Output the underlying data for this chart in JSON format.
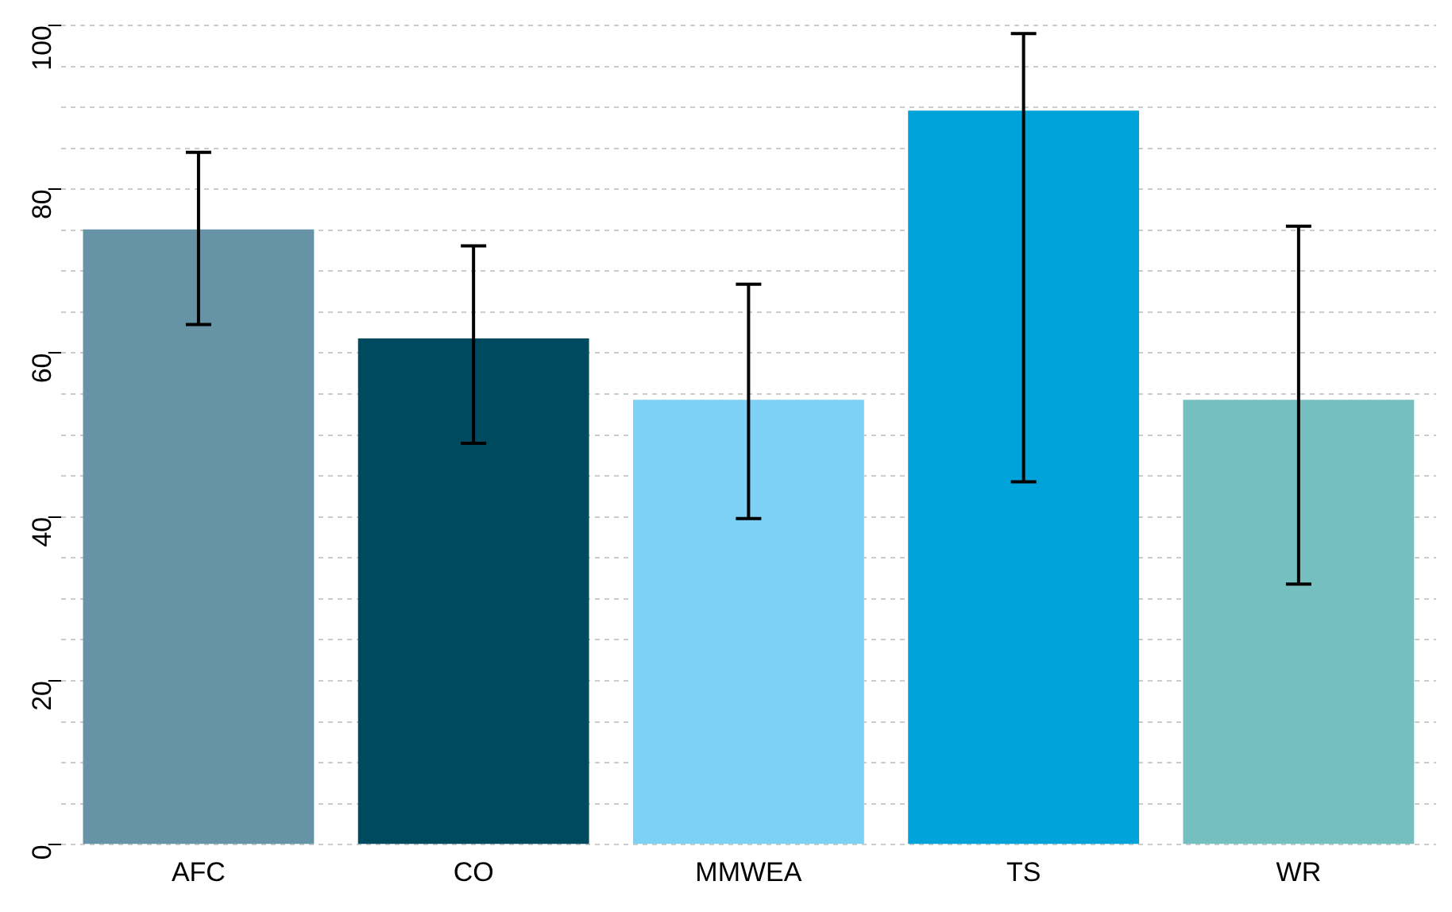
{
  "chart_data": {
    "type": "bar",
    "categories": [
      "AFC",
      "CO",
      "MMWEA",
      "TS",
      "WR"
    ],
    "values": [
      75.1,
      61.8,
      54.3,
      89.6,
      54.3
    ],
    "colors": [
      "#6694a6",
      "#004a5f",
      "#7dd1f5",
      "#00a3d9",
      "#75bfc1"
    ],
    "errors": [
      [
        63.5,
        84.5
      ],
      [
        49,
        73.1
      ],
      [
        39.8,
        68.4
      ],
      [
        44.3,
        99
      ],
      [
        31.8,
        75.5
      ]
    ],
    "ylim": [
      0,
      100
    ],
    "yticks": [
      0,
      {
        "value": 5,
        "label": null
      },
      {
        "value": 10,
        "label": null
      },
      {
        "value": 15,
        "label": null
      },
      20,
      {
        "value": 25,
        "label": null
      },
      {
        "value": 30,
        "label": null
      },
      {
        "value": 35,
        "label": null
      },
      40,
      {
        "value": 45,
        "label": null
      },
      {
        "value": 50,
        "label": null
      },
      {
        "value": 55,
        "label": null
      },
      60,
      {
        "value": 65,
        "label": null
      },
      {
        "value": 70,
        "label": null
      },
      {
        "value": 75,
        "label": null
      },
      80,
      {
        "value": 85,
        "label": null
      },
      {
        "value": 90,
        "label": null
      },
      {
        "value": 95,
        "label": null
      },
      100
    ],
    "grid": "y"
  }
}
